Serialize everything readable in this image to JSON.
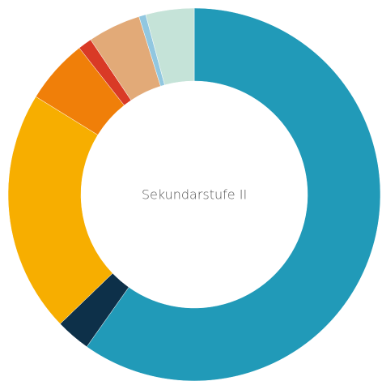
{
  "chart_data": {
    "type": "donut",
    "center_label": "Sekundarstufe II",
    "values": [
      59.8,
      3,
      21,
      5.6,
      1.2,
      4.6,
      0.6,
      4.2
    ],
    "colors": [
      "#219ab8",
      "#0d3049",
      "#f7ae00",
      "#f07f09",
      "#d93a26",
      "#e2aa78",
      "#91c7e0",
      "#c5e3d8"
    ]
  }
}
